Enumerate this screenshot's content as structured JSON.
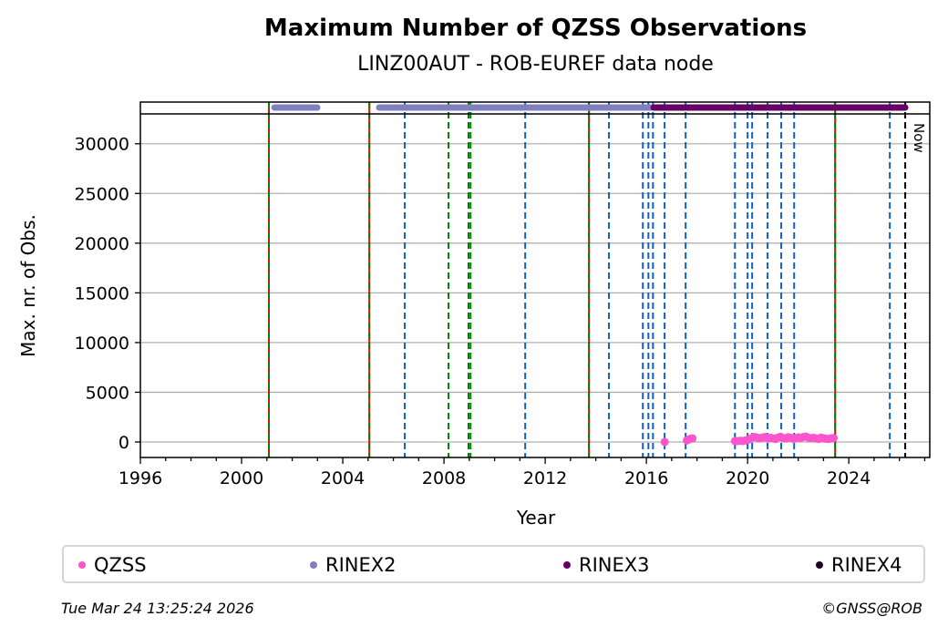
{
  "chart_data": {
    "type": "scatter",
    "title": "Maximum Number of QZSS Observations",
    "subtitle": "LINZ00AUT - ROB-EUREF data node",
    "xlabel": "Year",
    "ylabel": "Max. nr. of Obs.",
    "xlim": [
      1996,
      2027.2
    ],
    "ylim": [
      -1560,
      33000
    ],
    "xticks": [
      1996,
      2000,
      2004,
      2008,
      2012,
      2016,
      2020,
      2024
    ],
    "yticks": [
      0,
      5000,
      10000,
      15000,
      20000,
      25000,
      30000
    ],
    "grid": "y",
    "series": [
      {
        "name": "QZSS",
        "color": "#ff55cc",
        "points": [
          [
            2016.72,
            0
          ],
          [
            2017.6,
            150
          ],
          [
            2017.68,
            260
          ],
          [
            2017.76,
            330
          ],
          [
            2017.82,
            360
          ],
          [
            2019.5,
            100
          ],
          [
            2019.6,
            80
          ],
          [
            2019.7,
            120
          ],
          [
            2019.8,
            90
          ],
          [
            2019.9,
            150
          ],
          [
            2020.0,
            200
          ],
          [
            2020.1,
            300
          ],
          [
            2020.2,
            450
          ],
          [
            2020.3,
            500
          ],
          [
            2020.4,
            420
          ],
          [
            2020.5,
            380
          ],
          [
            2020.6,
            460
          ],
          [
            2020.7,
            500
          ],
          [
            2020.8,
            350
          ],
          [
            2020.9,
            420
          ],
          [
            2021.0,
            380
          ],
          [
            2021.1,
            300
          ],
          [
            2021.2,
            450
          ],
          [
            2021.3,
            520
          ],
          [
            2021.4,
            400
          ],
          [
            2021.5,
            350
          ],
          [
            2021.6,
            480
          ],
          [
            2021.7,
            420
          ],
          [
            2021.8,
            330
          ],
          [
            2021.9,
            380
          ],
          [
            2022.0,
            460
          ],
          [
            2022.1,
            400
          ],
          [
            2022.2,
            500
          ],
          [
            2022.3,
            550
          ],
          [
            2022.4,
            430
          ],
          [
            2022.5,
            380
          ],
          [
            2022.6,
            420
          ],
          [
            2022.7,
            350
          ],
          [
            2022.8,
            300
          ],
          [
            2022.9,
            450
          ],
          [
            2023.0,
            380
          ],
          [
            2023.1,
            330
          ],
          [
            2023.2,
            300
          ],
          [
            2023.3,
            380
          ],
          [
            2023.4,
            400
          ]
        ]
      },
      {
        "name": "RINEX2",
        "color": "#8080c0",
        "ranges": [
          [
            2001.3,
            2002.99
          ],
          [
            2005.44,
            2016.29
          ]
        ]
      },
      {
        "name": "RINEX3",
        "color": "#660066",
        "ranges": [
          [
            2016.29,
            2026.23
          ]
        ]
      },
      {
        "name": "RINEX4",
        "color": "#220022",
        "ranges": []
      }
    ],
    "events": {
      "receiver_antenna_change": [
        2001.08,
        2005.05,
        2013.73,
        2023.46
      ],
      "receiver_change": [
        2006.45,
        2011.21,
        2014.52,
        2015.86,
        2016.08,
        2016.26,
        2016.72,
        2017.55,
        2019.5,
        2020.0,
        2020.18,
        2020.79,
        2021.33,
        2021.84,
        2025.62
      ],
      "antenna_change": [
        2008.18,
        2008.97,
        2009.05
      ],
      "now": 2026.23
    },
    "now_label": "Now",
    "legend_placement": "bottom"
  },
  "footer": {
    "timestamp": "Tue Mar 24 13:25:24 2026",
    "credit": "©GNSS@ROB"
  }
}
